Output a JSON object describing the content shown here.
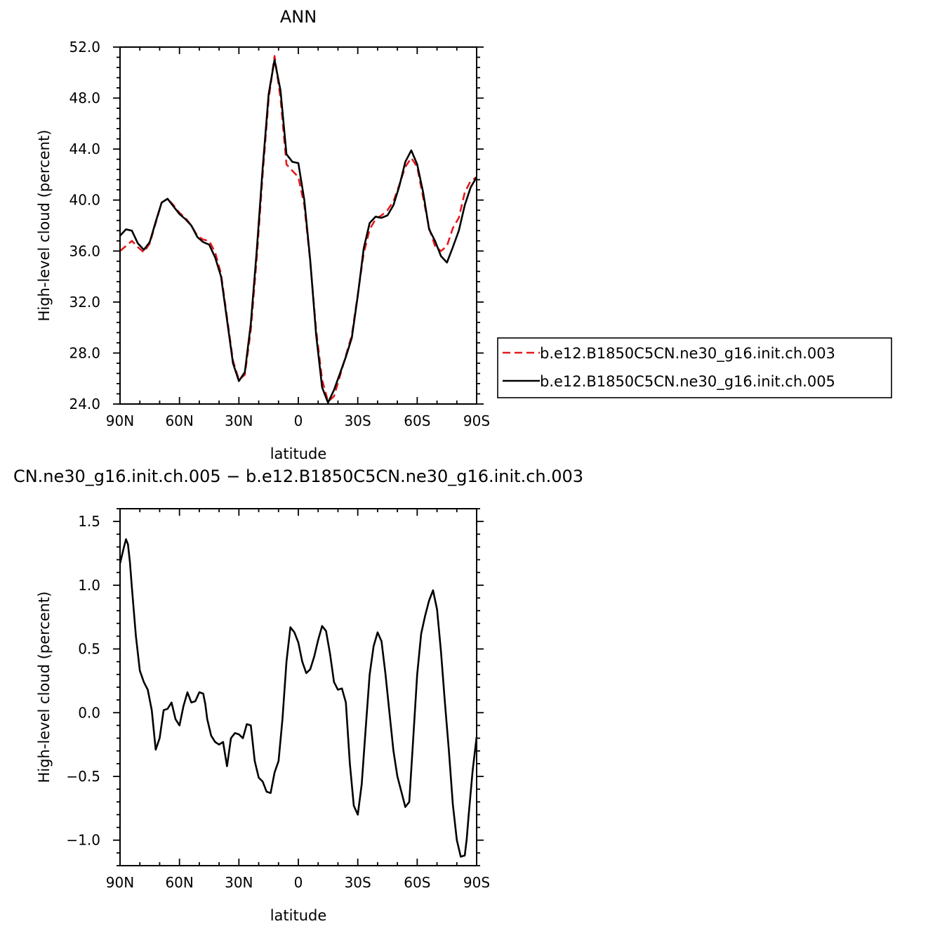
{
  "chart_data": [
    {
      "type": "line",
      "title": "ANN",
      "xlabel": "latitude",
      "ylabel": "High-level cloud (percent)",
      "xlim": [
        90,
        -90
      ],
      "ylim": [
        24,
        52
      ],
      "xticks": [
        90,
        60,
        30,
        0,
        -30,
        -60,
        -90
      ],
      "xtick_labels": [
        "90N",
        "60N",
        "30N",
        "0",
        "30S",
        "60S",
        "90S"
      ],
      "yticks": [
        24,
        28,
        32,
        36,
        40,
        44,
        48,
        52
      ],
      "ytick_labels": [
        "24.0",
        "28.0",
        "32.0",
        "36.0",
        "40.0",
        "44.0",
        "48.0",
        "52.0"
      ],
      "legend": {
        "placement": "right"
      },
      "series": [
        {
          "name": "b.e12.B1850C5CN.ne30_g16.init.ch.003",
          "color": "#e41a1c",
          "dash": "dashed",
          "x": [
            90,
            87,
            84,
            81,
            78,
            75,
            72,
            69,
            66,
            63,
            60,
            57,
            54,
            51,
            48,
            45,
            42,
            39,
            36,
            33,
            30,
            27,
            24,
            21,
            18,
            15,
            12,
            9,
            6,
            3,
            0,
            -3,
            -6,
            -9,
            -12,
            -15,
            -18,
            -21,
            -24,
            -27,
            -30,
            -33,
            -36,
            -39,
            -42,
            -45,
            -48,
            -51,
            -54,
            -57,
            -60,
            -63,
            -66,
            -69,
            -72,
            -75,
            -78,
            -81,
            -84,
            -87,
            -90
          ],
          "y": [
            36.0,
            36.4,
            36.8,
            36.3,
            35.9,
            36.6,
            38.2,
            39.8,
            40.1,
            39.6,
            39.0,
            38.6,
            38.0,
            37.2,
            36.9,
            36.8,
            35.9,
            34.2,
            30.8,
            27.4,
            25.9,
            26.3,
            29.8,
            35.4,
            42.0,
            47.9,
            51.3,
            48.0,
            42.8,
            42.3,
            41.8,
            39.6,
            35.2,
            29.8,
            25.9,
            24.2,
            24.6,
            26.2,
            27.8,
            29.4,
            32.6,
            35.8,
            37.7,
            38.5,
            38.8,
            39.2,
            39.9,
            41.2,
            42.6,
            43.3,
            42.6,
            40.2,
            37.8,
            36.4,
            36.0,
            36.4,
            37.8,
            38.6,
            40.6,
            41.5,
            41.8
          ]
        },
        {
          "name": "b.e12.B1850C5CN.ne30_g16.init.ch.005",
          "color": "#000000",
          "dash": "solid",
          "x": [
            90,
            87,
            84,
            81,
            78,
            75,
            72,
            69,
            66,
            63,
            60,
            57,
            54,
            51,
            48,
            45,
            42,
            39,
            36,
            33,
            30,
            27,
            24,
            21,
            18,
            15,
            12,
            9,
            6,
            3,
            0,
            -3,
            -6,
            -9,
            -12,
            -15,
            -18,
            -21,
            -24,
            -27,
            -30,
            -33,
            -36,
            -39,
            -42,
            -45,
            -48,
            -51,
            -54,
            -57,
            -60,
            -63,
            -66,
            -69,
            -72,
            -75,
            -78,
            -81,
            -84,
            -87,
            -90
          ],
          "y": [
            37.2,
            37.7,
            37.6,
            36.6,
            36.1,
            36.7,
            38.3,
            39.8,
            40.1,
            39.5,
            38.9,
            38.5,
            38.0,
            37.1,
            36.7,
            36.5,
            35.5,
            34.0,
            30.6,
            27.2,
            25.8,
            26.5,
            30.3,
            36.0,
            42.5,
            48.3,
            51.0,
            48.6,
            43.6,
            43.0,
            42.9,
            40.0,
            35.3,
            29.4,
            25.3,
            24.1,
            25.1,
            26.4,
            27.7,
            29.2,
            32.5,
            36.2,
            38.2,
            38.7,
            38.6,
            38.8,
            39.6,
            41.1,
            43.0,
            43.9,
            42.8,
            40.6,
            37.7,
            36.8,
            35.6,
            35.1,
            36.3,
            37.6,
            39.6,
            41.0,
            41.8
          ]
        }
      ]
    },
    {
      "type": "line",
      "title": "CN.ne30_g16.init.ch.005 − b.e12.B1850C5CN.ne30_g16.init.ch.003",
      "xlabel": "latitude",
      "ylabel": "High-level cloud (percent)",
      "xlim": [
        90,
        -90
      ],
      "ylim": [
        -1.2,
        1.6
      ],
      "xticks": [
        90,
        60,
        30,
        0,
        -30,
        -60,
        -90
      ],
      "xtick_labels": [
        "90N",
        "60N",
        "30N",
        "0",
        "30S",
        "60S",
        "90S"
      ],
      "yticks": [
        -1.0,
        -0.5,
        0.0,
        0.5,
        1.0,
        1.5
      ],
      "ytick_labels": [
        "−1.0",
        "−0.5",
        "0.0",
        "0.5",
        "1.0",
        "1.5"
      ],
      "series": [
        {
          "name": "",
          "color": "#000000",
          "dash": "solid",
          "x": [
            90,
            88,
            87,
            86,
            85,
            84,
            82,
            80,
            78,
            76,
            74,
            72,
            70,
            68,
            66,
            64,
            62,
            60,
            58,
            56,
            54,
            52,
            50,
            48,
            47,
            46,
            44,
            42,
            40,
            38,
            36,
            34,
            32,
            30,
            28,
            26,
            24,
            22,
            20,
            18,
            16,
            14,
            12,
            10,
            8,
            6,
            4,
            2,
            0,
            -2,
            -4,
            -6,
            -8,
            -10,
            -12,
            -14,
            -16,
            -18,
            -20,
            -22,
            -24,
            -26,
            -28,
            -30,
            -32,
            -34,
            -36,
            -38,
            -40,
            -42,
            -44,
            -46,
            -48,
            -50,
            -52,
            -54,
            -56,
            -58,
            -60,
            -62,
            -64,
            -66,
            -68,
            -70,
            -72,
            -74,
            -76,
            -78,
            -80,
            -82,
            -84,
            -85,
            -86,
            -88,
            -90
          ],
          "y": [
            1.17,
            1.3,
            1.36,
            1.32,
            1.18,
            0.98,
            0.6,
            0.33,
            0.24,
            0.18,
            0.02,
            -0.29,
            -0.2,
            0.02,
            0.03,
            0.08,
            -0.05,
            -0.1,
            0.05,
            0.16,
            0.08,
            0.09,
            0.16,
            0.15,
            0.07,
            -0.05,
            -0.18,
            -0.23,
            -0.25,
            -0.23,
            -0.42,
            -0.2,
            -0.16,
            -0.17,
            -0.2,
            -0.09,
            -0.1,
            -0.38,
            -0.51,
            -0.54,
            -0.62,
            -0.63,
            -0.47,
            -0.38,
            -0.05,
            0.4,
            0.67,
            0.63,
            0.55,
            0.4,
            0.31,
            0.34,
            0.44,
            0.57,
            0.68,
            0.64,
            0.46,
            0.24,
            0.18,
            0.19,
            0.08,
            -0.4,
            -0.73,
            -0.8,
            -0.56,
            -0.12,
            0.3,
            0.52,
            0.63,
            0.56,
            0.3,
            0.0,
            -0.3,
            -0.5,
            -0.62,
            -0.74,
            -0.7,
            -0.2,
            0.3,
            0.62,
            0.76,
            0.88,
            0.96,
            0.81,
            0.48,
            0.08,
            -0.3,
            -0.72,
            -1.0,
            -1.13,
            -1.12,
            -0.99,
            -0.8,
            -0.45,
            -0.19
          ]
        }
      ]
    }
  ]
}
